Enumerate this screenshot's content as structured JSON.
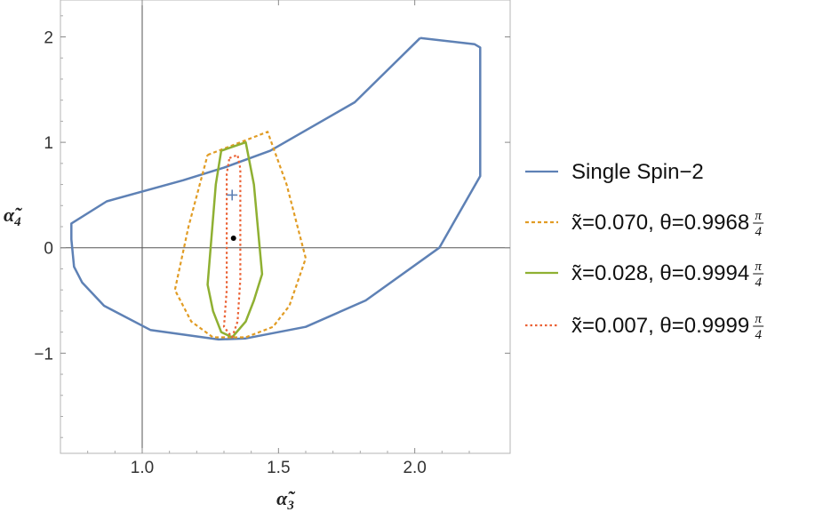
{
  "chart_data": {
    "type": "line",
    "xlabel": {
      "base": "α̃",
      "sub": "3"
    },
    "ylabel": {
      "base": "α̃",
      "sub": "4"
    },
    "xlim": [
      0.7,
      2.35
    ],
    "ylim": [
      -1.95,
      2.35
    ],
    "x_ticks": [
      {
        "value": 1.0,
        "label": "1.0"
      },
      {
        "value": 1.5,
        "label": "1.5"
      },
      {
        "value": 2.0,
        "label": "2.0"
      }
    ],
    "y_ticks": [
      {
        "value": -1,
        "label": "−1"
      },
      {
        "value": 0,
        "label": "0"
      },
      {
        "value": 1,
        "label": "1"
      },
      {
        "value": 2,
        "label": "2"
      }
    ],
    "reference_lines": {
      "x": 1.0,
      "y": 0
    },
    "series": [
      {
        "name": "Single Spin−2",
        "color": "#5e81b5",
        "style": "solid",
        "points": [
          [
            2.02,
            1.99
          ],
          [
            2.22,
            1.93
          ],
          [
            2.24,
            1.9
          ],
          [
            2.24,
            0.68
          ],
          [
            2.09,
            0.0
          ],
          [
            1.82,
            -0.5
          ],
          [
            1.6,
            -0.75
          ],
          [
            1.38,
            -0.86
          ],
          [
            1.28,
            -0.87
          ],
          [
            1.03,
            -0.78
          ],
          [
            0.86,
            -0.55
          ],
          [
            0.78,
            -0.33
          ],
          [
            0.75,
            -0.18
          ],
          [
            0.74,
            0.08
          ],
          [
            0.74,
            0.23
          ],
          [
            0.87,
            0.44
          ],
          [
            1.15,
            0.64
          ],
          [
            1.3,
            0.76
          ],
          [
            1.47,
            0.92
          ],
          [
            1.78,
            1.38
          ],
          [
            2.02,
            1.99
          ]
        ]
      },
      {
        "name": "x̃=0.070, θ=0.9968",
        "fraction": "π/4",
        "color": "#e19c24",
        "style": "dashed",
        "points": [
          [
            1.24,
            0.88
          ],
          [
            1.36,
            1.0
          ],
          [
            1.46,
            1.1
          ],
          [
            1.53,
            0.6
          ],
          [
            1.6,
            -0.1
          ],
          [
            1.54,
            -0.55
          ],
          [
            1.48,
            -0.75
          ],
          [
            1.38,
            -0.85
          ],
          [
            1.26,
            -0.85
          ],
          [
            1.18,
            -0.7
          ],
          [
            1.12,
            -0.4
          ],
          [
            1.17,
            0.2
          ],
          [
            1.24,
            0.88
          ]
        ]
      },
      {
        "name": "x̃=0.028, θ=0.9994",
        "fraction": "π/4",
        "color": "#8fb032",
        "style": "solid",
        "points": [
          [
            1.29,
            0.92
          ],
          [
            1.38,
            1.0
          ],
          [
            1.41,
            0.6
          ],
          [
            1.44,
            -0.25
          ],
          [
            1.41,
            -0.5
          ],
          [
            1.38,
            -0.7
          ],
          [
            1.33,
            -0.85
          ],
          [
            1.29,
            -0.8
          ],
          [
            1.26,
            -0.6
          ],
          [
            1.24,
            -0.35
          ],
          [
            1.27,
            0.6
          ],
          [
            1.29,
            0.92
          ]
        ]
      },
      {
        "name": "x̃=0.007, θ=0.9999",
        "fraction": "π/4",
        "color": "#eb6235",
        "style": "dotted",
        "points": [
          [
            1.32,
            0.85
          ],
          [
            1.35,
            0.88
          ],
          [
            1.36,
            0.75
          ],
          [
            1.36,
            -0.3
          ],
          [
            1.35,
            -0.7
          ],
          [
            1.33,
            -0.85
          ],
          [
            1.3,
            -0.75
          ],
          [
            1.31,
            -0.4
          ],
          [
            1.31,
            0.2
          ],
          [
            1.31,
            0.7
          ],
          [
            1.32,
            0.85
          ]
        ]
      }
    ],
    "markers": [
      {
        "type": "plus",
        "x": 1.33,
        "y": 0.5,
        "color": "#5e81b5"
      },
      {
        "type": "dot",
        "x": 1.335,
        "y": 0.09,
        "color": "#000000"
      }
    ],
    "legend_position": "right"
  }
}
